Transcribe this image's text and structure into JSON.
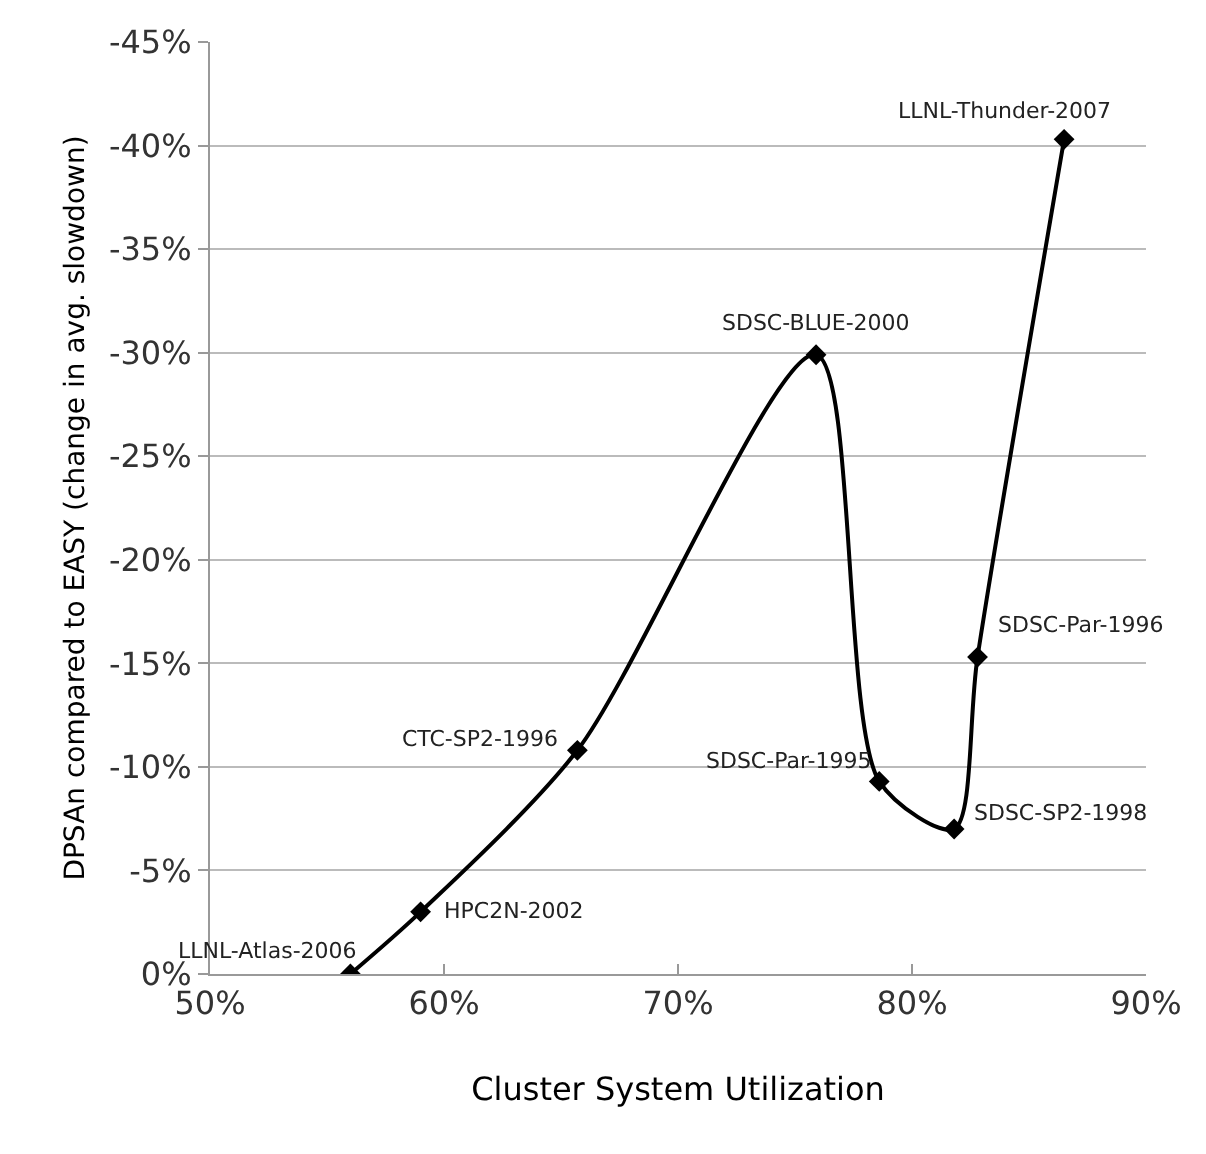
{
  "chart_data": {
    "type": "line",
    "xlabel": "Cluster System Utilization",
    "ylabel": "DPSAn compared to EASY (change in avg. slowdown)",
    "x": [
      56,
      59,
      65.7,
      75.9,
      78.6,
      81.8,
      82.8,
      86.5
    ],
    "series": [
      {
        "color": "#000000",
        "values": [
          0,
          -3.0,
          -10.8,
          -29.9,
          -9.3,
          -7.0,
          -15.3,
          -40.3
        ]
      }
    ],
    "xlim": [
      50,
      90
    ],
    "xticks": [
      {
        "value": 50,
        "label": "50%"
      },
      {
        "value": 60,
        "label": "60%"
      },
      {
        "value": 70,
        "label": "70%"
      },
      {
        "value": 80,
        "label": "80%"
      },
      {
        "value": 90,
        "label": "90%"
      }
    ],
    "ylim": [
      0,
      -45
    ],
    "yticks": [
      {
        "value": 0,
        "label": "0%"
      },
      {
        "value": -5,
        "label": "-5%"
      },
      {
        "value": -10,
        "label": "-10%"
      },
      {
        "value": -15,
        "label": "-15%"
      },
      {
        "value": -20,
        "label": "-20%"
      },
      {
        "value": -25,
        "label": "-25%"
      },
      {
        "value": -30,
        "label": "-30%"
      },
      {
        "value": -35,
        "label": "-35%"
      },
      {
        "value": -40,
        "label": "-40%"
      },
      {
        "value": -45,
        "label": "-45%"
      }
    ],
    "grid": "y",
    "marker": "diamond",
    "line_style": "solid",
    "annotations": [
      {
        "text": "LLNL-Atlas-2006",
        "x": 56,
        "y": 0
      },
      {
        "text": "HPC2N-2002",
        "x": 59,
        "y": -3.0
      },
      {
        "text": "CTC-SP2-1996",
        "x": 65.7,
        "y": -10.8
      },
      {
        "text": "SDSC-BLUE-2000",
        "x": 75.9,
        "y": -29.9
      },
      {
        "text": "SDSC-Par-1995",
        "x": 78.6,
        "y": -9.3
      },
      {
        "text": "SDSC-SP2-1998",
        "x": 81.8,
        "y": -7.0
      },
      {
        "text": "SDSC-Par-1996",
        "x": 82.8,
        "y": -15.3
      },
      {
        "text": "LLNL-Thunder-2007",
        "x": 86.5,
        "y": -40.3
      }
    ]
  }
}
